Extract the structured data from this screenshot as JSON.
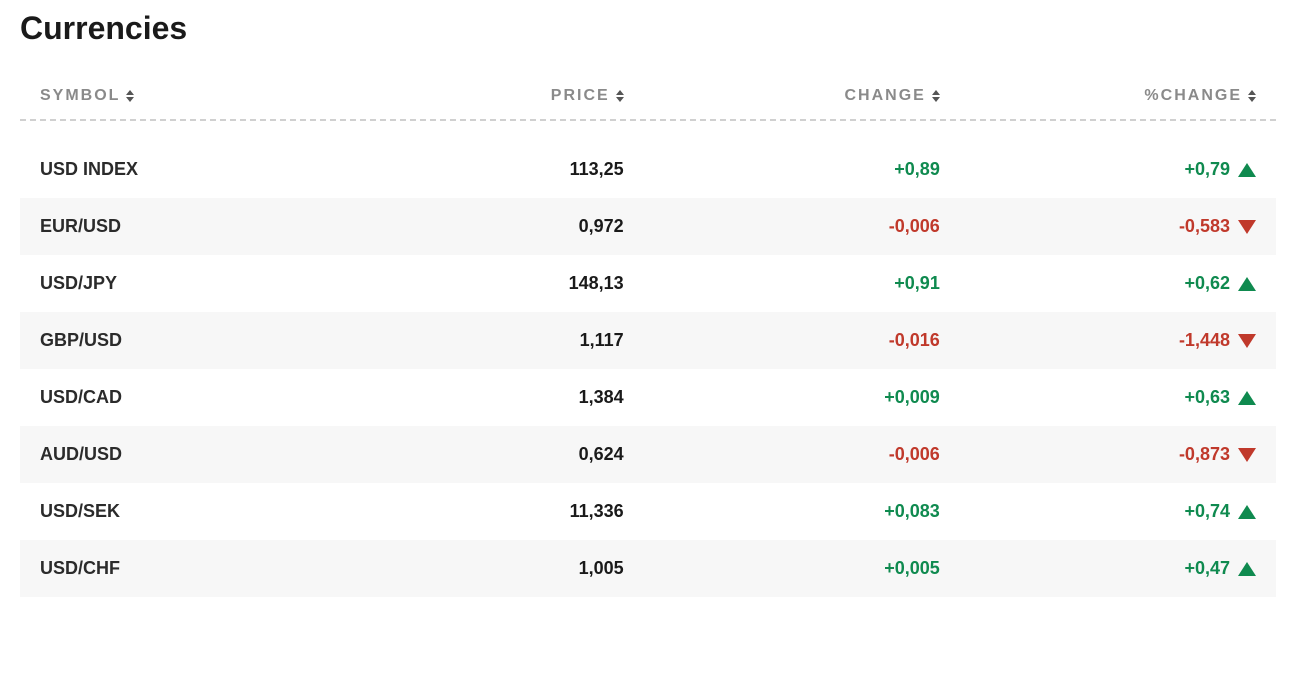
{
  "title": "Currencies",
  "colors": {
    "positive": "#0f8a4f",
    "negative": "#c0392b",
    "header_text": "#8a8a8a",
    "row_alt_bg": "#f7f7f7",
    "background": "#ffffff",
    "text": "#1a1a1a",
    "divider": "#d0d0d0"
  },
  "columns": [
    {
      "key": "symbol",
      "label": "SYMBOL",
      "align": "left"
    },
    {
      "key": "price",
      "label": "PRICE",
      "align": "right"
    },
    {
      "key": "change",
      "label": "CHANGE",
      "align": "right"
    },
    {
      "key": "pchange",
      "label": "%CHANGE",
      "align": "right"
    }
  ],
  "rows": [
    {
      "symbol": "USD INDEX",
      "price": "113,25",
      "change": "+0,89",
      "pchange": "+0,79",
      "dir": "up"
    },
    {
      "symbol": "EUR/USD",
      "price": "0,972",
      "change": "-0,006",
      "pchange": "-0,583",
      "dir": "down"
    },
    {
      "symbol": "USD/JPY",
      "price": "148,13",
      "change": "+0,91",
      "pchange": "+0,62",
      "dir": "up"
    },
    {
      "symbol": "GBP/USD",
      "price": "1,117",
      "change": "-0,016",
      "pchange": "-1,448",
      "dir": "down"
    },
    {
      "symbol": "USD/CAD",
      "price": "1,384",
      "change": "+0,009",
      "pchange": "+0,63",
      "dir": "up"
    },
    {
      "symbol": "AUD/USD",
      "price": "0,624",
      "change": "-0,006",
      "pchange": "-0,873",
      "dir": "down"
    },
    {
      "symbol": "USD/SEK",
      "price": "11,336",
      "change": "+0,083",
      "pchange": "+0,74",
      "dir": "up"
    },
    {
      "symbol": "USD/CHF",
      "price": "1,005",
      "change": "+0,005",
      "pchange": "+0,47",
      "dir": "up"
    }
  ]
}
